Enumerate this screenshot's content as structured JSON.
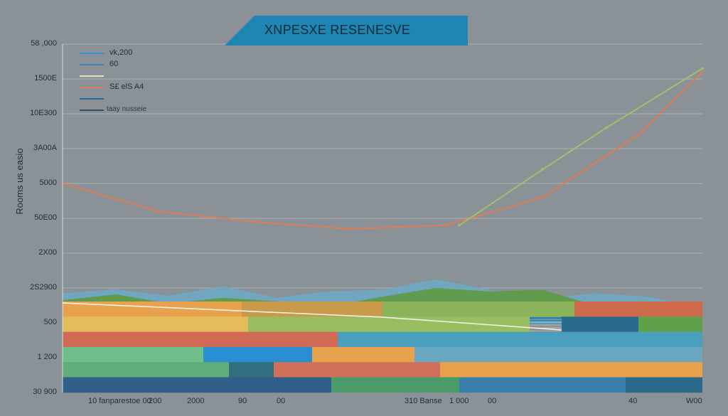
{
  "chart_data": {
    "type": "area",
    "title": "XNPESXE RESENESVE",
    "ylabel": "Rooms us easio",
    "xlabel": "",
    "y_ticks": [
      "58 ,000",
      "1500E",
      "10E300",
      "3A00A",
      "5000",
      "50E00",
      "2X00",
      "2S2900",
      "500",
      "1 200",
      "30 900"
    ],
    "x_ticks": [
      "10 fanparestoe 00",
      "200",
      "2000",
      "90",
      "00",
      "310 Banse",
      "1 000",
      "00",
      "40",
      "W00"
    ],
    "legend": [
      {
        "label": "vk,200",
        "color": "#3a8fd0"
      },
      {
        "label": "60",
        "color": "#3e86b8"
      },
      {
        "label": "",
        "color": "#e6e0c0"
      },
      {
        "label": "S£ elS A4",
        "color": "#e07b55"
      },
      {
        "label": "",
        "color": "#1f6a9a"
      },
      {
        "label": "taay nusseie",
        "color": "#2d5070"
      }
    ],
    "grid": true,
    "line_series": [
      {
        "color": "#e07b55",
        "points": [
          [
            0,
            6
          ],
          [
            15,
            5.2
          ],
          [
            30,
            4.9
          ],
          [
            45,
            4.7
          ],
          [
            60,
            4.8
          ],
          [
            75,
            5.6
          ],
          [
            90,
            7.4
          ],
          [
            100,
            9.2
          ]
        ]
      },
      {
        "color": "#9cc36a",
        "points": [
          [
            62,
            4.8
          ],
          [
            75,
            6.4
          ],
          [
            85,
            7.6
          ],
          [
            100,
            9.3
          ]
        ]
      }
    ],
    "areas": [
      {
        "color": "#6ea8c2",
        "top": [
          2.85,
          2.96,
          2.78,
          3.05,
          2.72,
          2.9,
          2.95,
          3.25,
          2.95,
          2.7,
          2.85,
          2.75,
          2.4
        ]
      },
      {
        "color": "#5f9a43",
        "top": [
          2.65,
          2.82,
          2.55,
          2.72,
          2.62,
          2.48,
          2.75,
          3.0,
          2.9,
          2.95,
          2.5,
          2.38,
          2.2
        ]
      }
    ],
    "bands": [
      {
        "color": "#2f7fae",
        "y0": 2.06,
        "y1": 2.18
      },
      {
        "color": "#3c9fc9",
        "y0": 1.98,
        "y1": 2.06
      }
    ],
    "bar_rows": [
      [
        {
          "c": "#e8a24e",
          "x": 0,
          "w": 28
        },
        {
          "c": "#c89a4a",
          "x": 28,
          "w": 22
        },
        {
          "c": "#8ab35a",
          "x": 50,
          "w": 30
        },
        {
          "c": "#cc6a4a",
          "x": 80,
          "w": 20
        }
      ],
      [
        {
          "c": "#e3bd5a",
          "x": 0,
          "w": 29
        },
        {
          "c": "#9bbd62",
          "x": 29,
          "w": 44
        },
        {
          "c": "#2a6a8a",
          "x": 78,
          "w": 12
        },
        {
          "c": "#5fa04a",
          "x": 90,
          "w": 10
        }
      ],
      [
        {
          "c": "#d06a55",
          "x": 0,
          "w": 43
        },
        {
          "c": "#4a9fbf",
          "x": 43,
          "w": 57
        }
      ],
      [
        {
          "c": "#6fbf8a",
          "x": 0,
          "w": 22
        },
        {
          "c": "#2a8fd0",
          "x": 22,
          "w": 17
        },
        {
          "c": "#e8a24e",
          "x": 39,
          "w": 16
        },
        {
          "c": "#6aa8c2",
          "x": 55,
          "w": 45
        }
      ],
      [
        {
          "c": "#5fae7a",
          "x": 0,
          "w": 26
        },
        {
          "c": "#2f6f7f",
          "x": 26,
          "w": 7
        },
        {
          "c": "#d0705a",
          "x": 33,
          "w": 26
        },
        {
          "c": "#e8a24e",
          "x": 59,
          "w": 41
        }
      ],
      [
        {
          "c": "#2f5f8a",
          "x": 0,
          "w": 42
        },
        {
          "c": "#4a9a6a",
          "x": 42,
          "w": 20
        },
        {
          "c": "#3a7faa",
          "x": 62,
          "w": 26
        },
        {
          "c": "#2a6a8a",
          "x": 88,
          "w": 12
        }
      ]
    ]
  }
}
